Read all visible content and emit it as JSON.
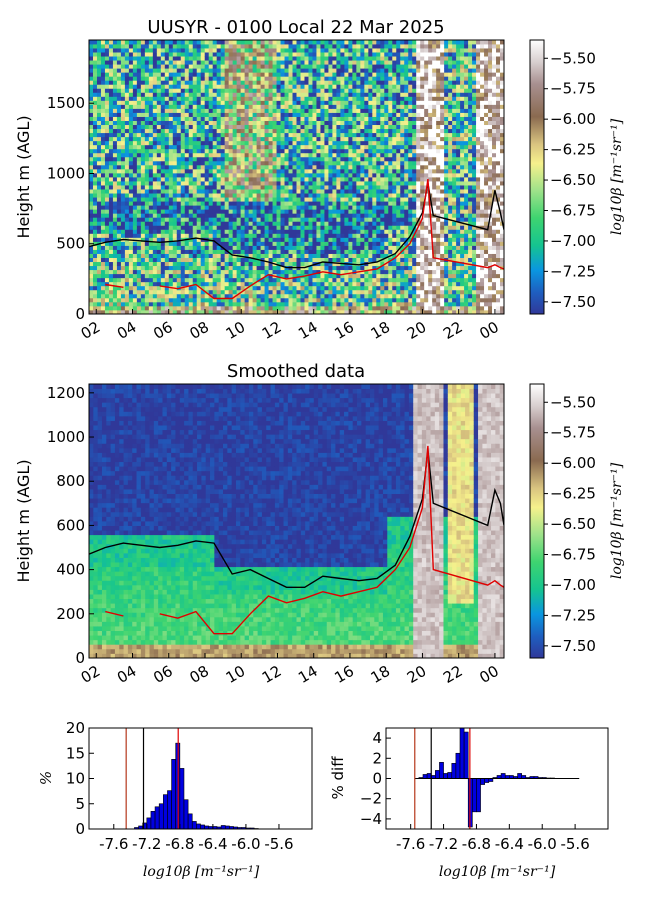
{
  "chart_data": [
    {
      "type": "heatmap",
      "title": "UUSYR - 0100 Local 22 Mar 2025",
      "ylabel": "Height m (AGL)",
      "xticks": [
        "02",
        "04",
        "06",
        "08",
        "10",
        "12",
        "14",
        "16",
        "18",
        "20",
        "22",
        "00"
      ],
      "xtick_hours": [
        2,
        4,
        6,
        8,
        10,
        12,
        14,
        16,
        18,
        20,
        22,
        24
      ],
      "xlim_hours": [
        1.6,
        24.5
      ],
      "ylim": [
        0,
        1950
      ],
      "yticks": [
        0,
        500,
        1000,
        1500
      ],
      "colorbar": {
        "label": "log10β [m⁻¹sr⁻¹]",
        "ticks": [
          "-5.50",
          "-5.75",
          "-6.00",
          "-6.25",
          "-6.50",
          "-6.75",
          "-7.00",
          "-7.25",
          "-7.50"
        ],
        "range": [
          -7.6,
          -5.35
        ]
      },
      "series": [
        {
          "color": "#000000",
          "x": [
            1.6,
            2.5,
            3.5,
            4.5,
            5.5,
            6.5,
            7.5,
            8.5,
            9.5,
            10.5,
            11.5,
            12.5,
            13.5,
            14.5,
            15.5,
            16.5,
            17.5,
            18.5,
            19.3,
            20.0,
            20.3,
            20.6,
            23.6,
            24.0,
            24.3,
            24.5
          ],
          "y": [
            480,
            510,
            530,
            520,
            510,
            520,
            540,
            520,
            420,
            400,
            370,
            330,
            330,
            370,
            360,
            350,
            370,
            430,
            550,
            720,
            930,
            700,
            600,
            880,
            720,
            600
          ]
        },
        {
          "color": "#e00000",
          "x": [
            1.6,
            2.5,
            3.5,
            4.5,
            5.5,
            6.5,
            7.5,
            8.5,
            9.5,
            10.5,
            11.5,
            12.5,
            13.5,
            14.5,
            15.5,
            16.5,
            17.5,
            18.5,
            19.3,
            20.0,
            20.3,
            20.6,
            23.6,
            24.0,
            24.3,
            24.5
          ],
          "y": [
            null,
            210,
            190,
            null,
            200,
            180,
            210,
            110,
            110,
            200,
            280,
            250,
            270,
            300,
            280,
            300,
            320,
            400,
            500,
            680,
            960,
            400,
            330,
            350,
            330,
            320
          ]
        }
      ]
    },
    {
      "type": "heatmap",
      "title": "Smoothed data",
      "ylabel": "Height m (AGL)",
      "xticks": [
        "02",
        "04",
        "06",
        "08",
        "10",
        "12",
        "14",
        "16",
        "18",
        "20",
        "22",
        "00"
      ],
      "xtick_hours": [
        2,
        4,
        6,
        8,
        10,
        12,
        14,
        16,
        18,
        20,
        22,
        24
      ],
      "xlim_hours": [
        1.6,
        24.5
      ],
      "ylim": [
        0,
        1240
      ],
      "yticks": [
        0,
        200,
        400,
        600,
        800,
        1000,
        1200
      ],
      "colorbar": {
        "label": "log10β [m⁻¹sr⁻¹]",
        "ticks": [
          "-5.50",
          "-5.75",
          "-6.00",
          "-6.25",
          "-6.50",
          "-6.75",
          "-7.00",
          "-7.25",
          "-7.50"
        ],
        "range": [
          -7.6,
          -5.35
        ]
      },
      "series": [
        {
          "color": "#000000",
          "x": [
            1.6,
            2.5,
            3.5,
            4.5,
            5.5,
            6.5,
            7.5,
            8.5,
            9.5,
            10.5,
            11.5,
            12.5,
            13.5,
            14.5,
            15.5,
            16.5,
            17.5,
            18.5,
            19.3,
            20.0,
            20.3,
            20.6,
            23.6,
            24.0,
            24.3,
            24.5
          ],
          "y": [
            470,
            500,
            520,
            510,
            500,
            510,
            530,
            520,
            380,
            400,
            360,
            320,
            320,
            370,
            360,
            350,
            360,
            420,
            550,
            720,
            940,
            700,
            600,
            760,
            700,
            600
          ]
        },
        {
          "color": "#e00000",
          "x": [
            1.6,
            2.5,
            3.5,
            4.5,
            5.5,
            6.5,
            7.5,
            8.5,
            9.5,
            10.5,
            11.5,
            12.5,
            13.5,
            14.5,
            15.5,
            16.5,
            17.5,
            18.5,
            19.3,
            20.0,
            20.3,
            20.6,
            23.6,
            24.0,
            24.3,
            24.5
          ],
          "y": [
            null,
            210,
            190,
            null,
            200,
            180,
            210,
            110,
            110,
            200,
            280,
            250,
            270,
            300,
            280,
            300,
            320,
            400,
            500,
            680,
            960,
            400,
            330,
            350,
            330,
            320
          ]
        }
      ]
    },
    {
      "type": "bar",
      "xlabel": "log10β [m⁻¹sr⁻¹]",
      "ylabel": "%",
      "xticks": [
        "-7.6",
        "-7.2",
        "-6.8",
        "-6.4",
        "-6.0",
        "-5.6"
      ],
      "xtick_values": [
        -7.6,
        -7.2,
        -6.8,
        -6.4,
        -6.0,
        -5.6
      ],
      "xlim": [
        -7.9,
        -5.2
      ],
      "ylim": [
        0,
        20
      ],
      "yticks": [
        0,
        5,
        10,
        15,
        20
      ],
      "bin_width": 0.05,
      "bin_starts": [
        -7.35,
        -7.3,
        -7.25,
        -7.2,
        -7.15,
        -7.1,
        -7.05,
        -7.0,
        -6.95,
        -6.9,
        -6.85,
        -6.8,
        -6.75,
        -6.7,
        -6.65,
        -6.6,
        -6.55,
        -6.5,
        -6.45,
        -6.4,
        -6.35,
        -6.3,
        -6.25,
        -6.2,
        -6.15,
        -6.1,
        -6.05,
        -6.0,
        -5.95,
        -5.9
      ],
      "values": [
        0.3,
        0.6,
        1.2,
        2.2,
        3.5,
        4.4,
        5.0,
        6.8,
        7.6,
        13.8,
        17.0,
        12.0,
        5.8,
        3.0,
        1.5,
        1.0,
        0.8,
        0.6,
        0.5,
        0.5,
        0.4,
        0.7,
        0.6,
        0.5,
        0.4,
        0.3,
        0.3,
        0.2,
        0.2,
        0.1
      ],
      "vlines": [
        {
          "x": -7.45,
          "color": "#b5361a"
        },
        {
          "x": -7.24,
          "color": "#000000"
        },
        {
          "x": -6.82,
          "color": "#e00000"
        }
      ]
    },
    {
      "type": "bar",
      "xlabel": "log10β [m⁻¹sr⁻¹]",
      "ylabel": "% diff",
      "xticks": [
        "-7.6",
        "-7.2",
        "-6.8",
        "-6.4",
        "-6.0",
        "-5.6"
      ],
      "xtick_values": [
        -7.6,
        -7.2,
        -6.8,
        -6.4,
        -6.0,
        -5.6
      ],
      "xlim": [
        -7.9,
        -5.2
      ],
      "ylim": [
        -5,
        5
      ],
      "yticks": [
        -4,
        -2,
        0,
        2,
        4
      ],
      "bin_width": 0.05,
      "bin_starts": [
        -7.5,
        -7.45,
        -7.4,
        -7.35,
        -7.3,
        -7.25,
        -7.2,
        -7.15,
        -7.1,
        -7.05,
        -7.0,
        -6.95,
        -6.9,
        -6.85,
        -6.8,
        -6.75,
        -6.7,
        -6.65,
        -6.6,
        -6.55,
        -6.5,
        -6.45,
        -6.4,
        -6.35,
        -6.3,
        -6.25,
        -6.2,
        -6.15,
        -6.1,
        -6.05,
        -6.0,
        -5.95,
        -5.9
      ],
      "values": [
        0.1,
        0.4,
        0.5,
        0.3,
        0.8,
        1.6,
        0.5,
        0.6,
        1.5,
        2.5,
        5.0,
        4.6,
        -4.8,
        -3.3,
        -3.3,
        -0.6,
        -0.4,
        -0.3,
        0.1,
        0.3,
        0.5,
        0.3,
        0.3,
        0.2,
        0.5,
        0.3,
        0.1,
        0.2,
        0.2,
        0.1,
        0.1,
        0.05,
        0.05
      ],
      "vlines": [
        {
          "x": -7.55,
          "color": "#b5361a"
        },
        {
          "x": -7.35,
          "color": "#000000"
        },
        {
          "x": -6.88,
          "color": "#e00000"
        }
      ]
    }
  ]
}
